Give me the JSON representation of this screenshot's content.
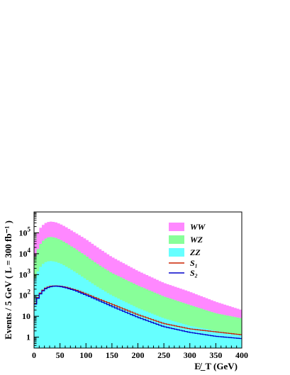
{
  "chart_data": {
    "type": "area",
    "xlabel": "E̸_T (GeV)",
    "ylabel": "Events / 5 GeV ( L = 300 fb⁻¹ )",
    "x_unit": "GeV",
    "xlim": [
      0,
      400
    ],
    "ylim": [
      0.3,
      1000000
    ],
    "y_scale": "log",
    "bin_width": 5,
    "x_ticks": [
      0,
      50,
      100,
      150,
      200,
      250,
      300,
      350,
      400
    ],
    "y_ticks": [
      {
        "value": 1,
        "base": "1",
        "exp": ""
      },
      {
        "value": 10,
        "base": "10",
        "exp": ""
      },
      {
        "value": 100,
        "base": "10",
        "exp": "2"
      },
      {
        "value": 1000,
        "base": "10",
        "exp": "3"
      },
      {
        "value": 10000,
        "base": "10",
        "exp": "4"
      },
      {
        "value": 100000,
        "base": "10",
        "exp": "5"
      }
    ],
    "legend_placement": "top-right",
    "series": [
      {
        "name": "WW",
        "style": "fill",
        "color": "#ff88ff",
        "x": [
          0,
          10,
          20,
          30,
          40,
          50,
          60,
          80,
          100,
          120,
          150,
          200,
          250,
          300,
          350,
          400
        ],
        "values": [
          30000,
          150000,
          280000,
          350000,
          330000,
          270000,
          200000,
          100000,
          50000,
          22000,
          7000,
          1500,
          400,
          150,
          50,
          20
        ]
      },
      {
        "name": "WZ",
        "style": "fill",
        "color": "#88ff99",
        "x": [
          0,
          10,
          20,
          30,
          40,
          50,
          60,
          80,
          100,
          120,
          150,
          200,
          250,
          300,
          350,
          400
        ],
        "values": [
          5000,
          25000,
          50000,
          65000,
          60000,
          48000,
          35000,
          17000,
          8000,
          3500,
          1200,
          300,
          90,
          35,
          14,
          8
        ]
      },
      {
        "name": "ZZ",
        "style": "fill",
        "color": "#66ffff",
        "x": [
          0,
          10,
          20,
          30,
          40,
          50,
          60,
          80,
          100,
          120,
          150,
          200,
          250,
          300,
          350,
          400
        ],
        "values": [
          500,
          2000,
          3800,
          4500,
          4200,
          3500,
          2600,
          1300,
          600,
          280,
          100,
          25,
          8,
          3.5,
          2,
          1.3
        ]
      },
      {
        "name": "S₁",
        "style": "line",
        "color": "#cc2200",
        "x": [
          0,
          10,
          20,
          30,
          40,
          50,
          60,
          80,
          100,
          120,
          150,
          200,
          250,
          300,
          350,
          400
        ],
        "values": [
          30,
          110,
          210,
          270,
          290,
          280,
          255,
          185,
          120,
          75,
          38,
          12,
          4.5,
          2.5,
          1.8,
          1.3
        ]
      },
      {
        "name": "S₂",
        "style": "line",
        "color": "#0000cc",
        "x": [
          0,
          10,
          20,
          30,
          40,
          50,
          60,
          80,
          100,
          120,
          150,
          200,
          250,
          300,
          350,
          400
        ],
        "values": [
          28,
          100,
          195,
          255,
          280,
          270,
          240,
          170,
          105,
          65,
          30,
          9,
          3.2,
          1.7,
          1.1,
          0.85
        ]
      }
    ]
  }
}
